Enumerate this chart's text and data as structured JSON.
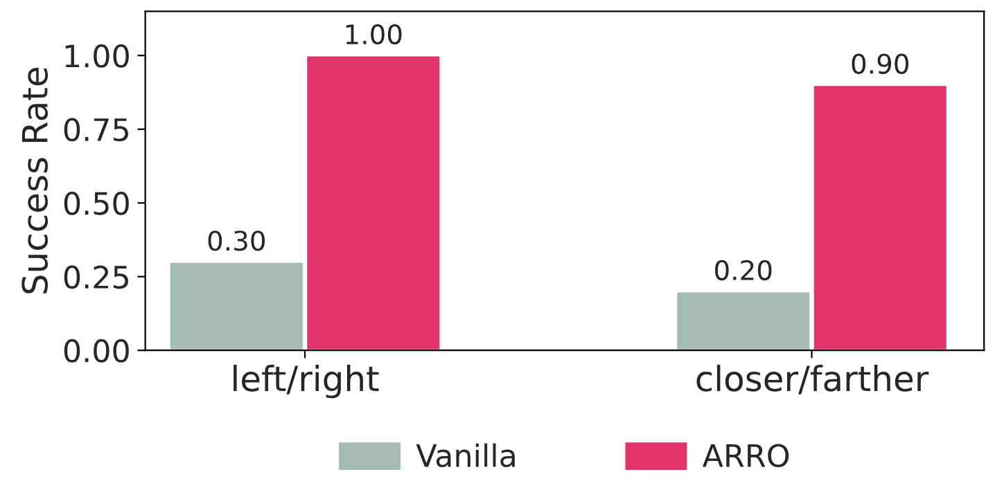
{
  "chart_data": {
    "type": "bar",
    "ylabel": "Success Rate",
    "categories": [
      "left/right",
      "closer/farther"
    ],
    "series": [
      {
        "name": "Vanilla",
        "color": "#a3bbb4",
        "values": [
          0.3,
          0.2
        ],
        "value_labels": [
          "0.30",
          "0.20"
        ]
      },
      {
        "name": "ARRO",
        "color": "#e3356b",
        "values": [
          1.0,
          0.9
        ],
        "value_labels": [
          "1.00",
          "0.90"
        ]
      }
    ],
    "ylim": [
      0,
      1.15
    ],
    "yticks": [
      {
        "value": 0,
        "label": "0.00"
      },
      {
        "value": 0.25,
        "label": "0.25"
      },
      {
        "value": 0.5,
        "label": "0.50"
      },
      {
        "value": 0.75,
        "label": "0.75"
      },
      {
        "value": 1.0,
        "label": "1.00"
      }
    ],
    "legend": "bottom",
    "grid": false
  }
}
